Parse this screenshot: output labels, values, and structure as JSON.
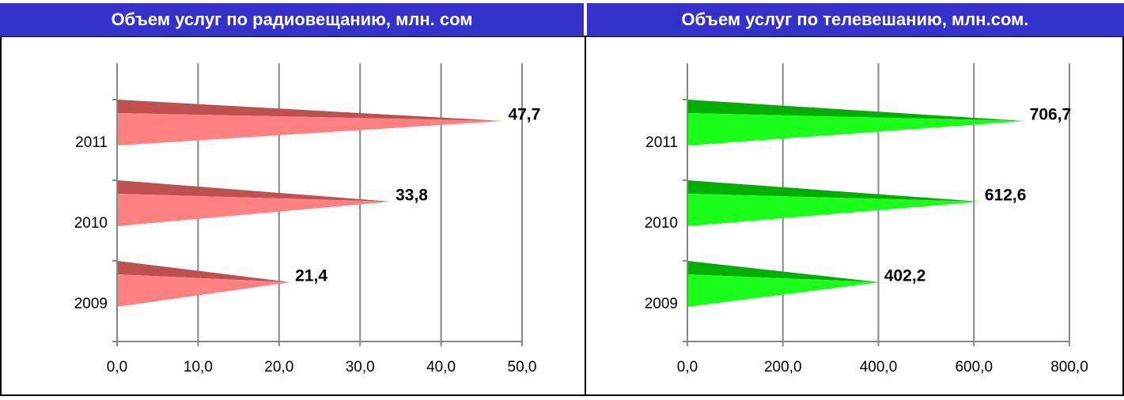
{
  "chart_data": [
    {
      "type": "bar",
      "orientation": "horizontal",
      "title": "Объем услуг по радиовещанию, млн. сом",
      "categories": [
        "2009",
        "2010",
        "2011"
      ],
      "values": [
        21.4,
        33.8,
        47.7
      ],
      "value_labels": [
        "21,4",
        "33,8",
        "47,7"
      ],
      "color": "#ff8080",
      "side_color": "#c0504d",
      "xlim": [
        0,
        50
      ],
      "xticks": [
        {
          "value": 0,
          "label": "0,0"
        },
        {
          "value": 10,
          "label": "10,0"
        },
        {
          "value": 20,
          "label": "20,0"
        },
        {
          "value": 30,
          "label": "30,0"
        },
        {
          "value": 40,
          "label": "40,0"
        },
        {
          "value": 50,
          "label": "50,0"
        }
      ],
      "grid": true
    },
    {
      "type": "bar",
      "orientation": "horizontal",
      "title": "Объем услуг по телевешанию, млн.сом.",
      "categories": [
        "2009",
        "2010",
        "2011"
      ],
      "values": [
        402.2,
        612.6,
        706.7
      ],
      "value_labels": [
        "402,2",
        "612,6",
        "706,7"
      ],
      "color": "#1aff1a",
      "side_color": "#00b000",
      "xlim": [
        0,
        800
      ],
      "xticks": [
        {
          "value": 0,
          "label": "0,0"
        },
        {
          "value": 200,
          "label": "200,0"
        },
        {
          "value": 400,
          "label": "400,0"
        },
        {
          "value": 600,
          "label": "600,0"
        },
        {
          "value": 800,
          "label": "800,0"
        }
      ],
      "grid": true
    }
  ]
}
